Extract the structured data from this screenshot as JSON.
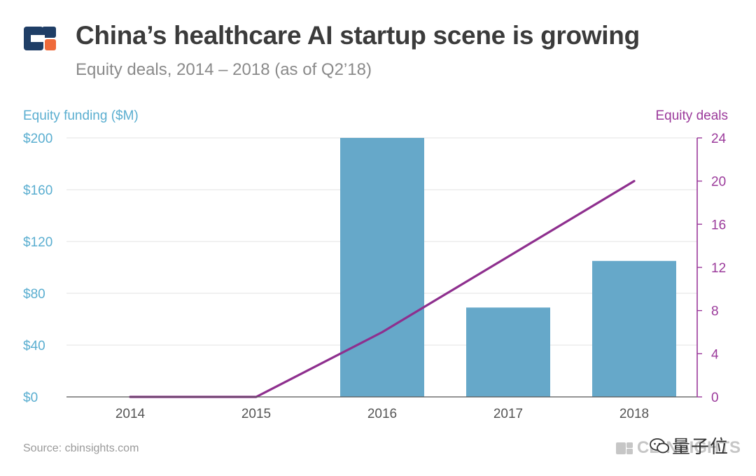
{
  "header": {
    "title": "China’s healthcare AI startup scene is growing",
    "subtitle": "Equity deals, 2014 – 2018 (as of Q2’18)"
  },
  "footer": {
    "source": "Source: cbinsights.com",
    "watermark_brand": "CBINSIGHTS",
    "watermark_cn": "量子位"
  },
  "colors": {
    "bar": "#66a8c9",
    "line": "#8e2f8e",
    "left_axis": "#5aaed0",
    "right_axis": "#9b3a9b",
    "logo_navy": "#1f3e66",
    "logo_orange": "#ef6a3a"
  },
  "chart_data": {
    "type": "bar",
    "title": "China’s healthcare AI startup scene is growing",
    "categories": [
      "2014",
      "2015",
      "2016",
      "2017",
      "2018"
    ],
    "series": [
      {
        "name": "Equity funding ($M)",
        "type": "bar",
        "axis": "left",
        "values": [
          0,
          0,
          200,
          69,
          105
        ]
      },
      {
        "name": "Equity deals",
        "type": "line",
        "axis": "right",
        "values": [
          0,
          0,
          6,
          13,
          20
        ]
      }
    ],
    "left_axis": {
      "label": "Equity funding ($M)",
      "ylim": [
        0,
        200
      ],
      "ticks": [
        0,
        40,
        80,
        120,
        160,
        200
      ],
      "tick_labels": [
        "$0",
        "$40",
        "$80",
        "$120",
        "$160",
        "$200"
      ]
    },
    "right_axis": {
      "label": "Equity deals",
      "ylim": [
        0,
        24
      ],
      "ticks": [
        0,
        4,
        8,
        12,
        16,
        20,
        24
      ],
      "tick_labels": [
        "0",
        "4",
        "8",
        "12",
        "16",
        "20",
        "24"
      ]
    },
    "grid": true
  }
}
